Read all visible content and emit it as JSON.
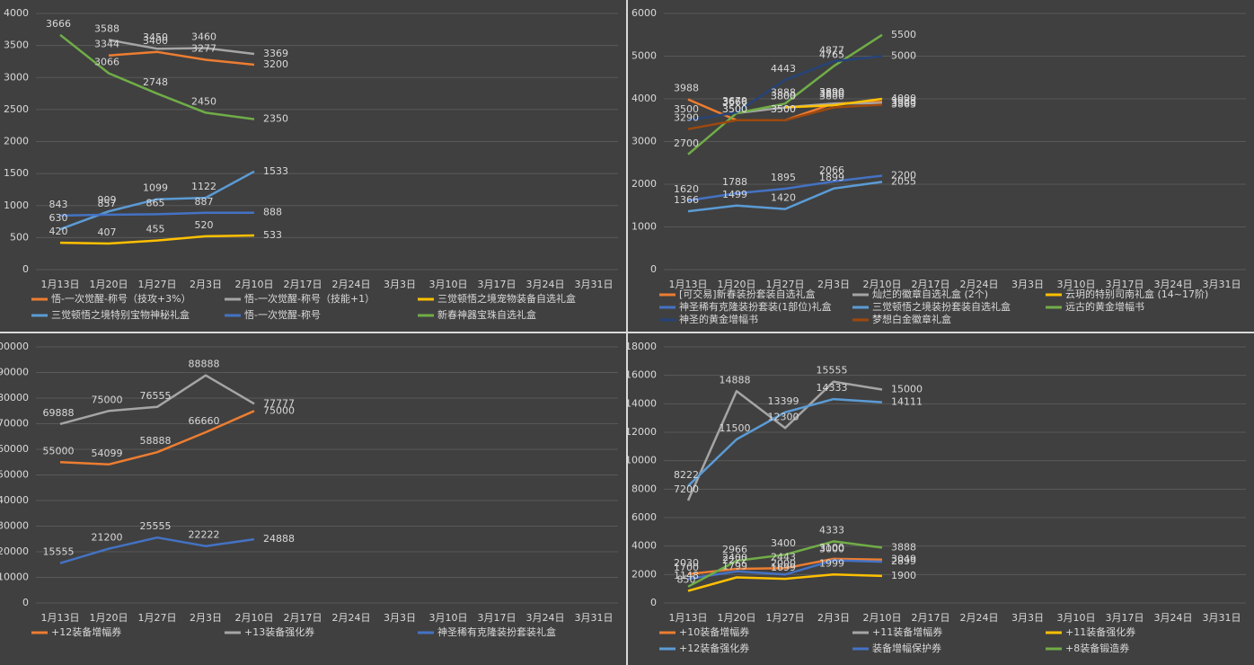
{
  "chart_data": [
    {
      "type": "line",
      "categories": [
        "1月13日",
        "1月20日",
        "1月27日",
        "2月3日",
        "2月10日",
        "2月17日",
        "2月24日",
        "3月3日",
        "3月10日",
        "3月17日",
        "3月24日",
        "3月31日"
      ],
      "ylim": [
        0,
        4000
      ],
      "yticks": [
        0,
        500,
        1000,
        1500,
        2000,
        2500,
        3000,
        3500,
        4000
      ],
      "grid": true,
      "series": [
        {
          "name": "悟-一次觉醒-称号（技攻+3%）",
          "color": "#ed7d31",
          "values": [
            null,
            3344,
            3400,
            3277,
            3200,
            null,
            null,
            null,
            null,
            null,
            null,
            null
          ]
        },
        {
          "name": "悟-一次觉醒-称号（技能+1）",
          "color": "#a5a5a5",
          "values": [
            null,
            3588,
            3450,
            3460,
            3369,
            null,
            null,
            null,
            null,
            null,
            null,
            null
          ]
        },
        {
          "name": "三觉顿悟之境宠物装备自选礼盒",
          "color": "#ffc000",
          "values": [
            420,
            407,
            455,
            520,
            533,
            null,
            null,
            null,
            null,
            null,
            null,
            null
          ]
        },
        {
          "name": "三觉顿悟之境特别宝物神秘礼盒",
          "color": "#5b9bd5",
          "values": [
            630,
            909,
            1099,
            1122,
            1533,
            null,
            null,
            null,
            null,
            null,
            null,
            null
          ]
        },
        {
          "name": "悟-一次觉醒-称号",
          "color": "#4472c4",
          "values": [
            843,
            857,
            865,
            887,
            888,
            null,
            null,
            null,
            null,
            null,
            null,
            null
          ]
        },
        {
          "name": "新春神器宝珠自选礼盒",
          "color": "#70ad47",
          "values": [
            3666,
            3066,
            2748,
            2450,
            2350,
            null,
            null,
            null,
            null,
            null,
            null,
            null
          ]
        }
      ]
    },
    {
      "type": "line",
      "categories": [
        "1月13日",
        "1月20日",
        "1月27日",
        "2月3日",
        "2月10日",
        "2月17日",
        "2月24日",
        "3月3日",
        "3月10日",
        "3月17日",
        "3月24日",
        "3月31日"
      ],
      "ylim": [
        0,
        6000
      ],
      "yticks": [
        0,
        1000,
        2000,
        3000,
        4000,
        5000,
        6000
      ],
      "grid": true,
      "series": [
        {
          "name": "[可交易]新春装扮套装自选礼盒",
          "color": "#ed7d31",
          "values": [
            3988,
            3500,
            3500,
            3890,
            3933,
            null,
            null,
            null,
            null,
            null,
            null,
            null
          ]
        },
        {
          "name": "灿烂的徽章自选礼盒 (2个)",
          "color": "#a5a5a5",
          "values": [
            null,
            3666,
            3800,
            3890,
            3900,
            null,
            null,
            null,
            null,
            null,
            null,
            null
          ]
        },
        {
          "name": "云玥的特别司南礼盒 (14~17阶)",
          "color": "#ffc000",
          "values": [
            null,
            null,
            3800,
            3850,
            4000,
            null,
            null,
            null,
            null,
            null,
            null,
            null
          ]
        },
        {
          "name": "神圣稀有克隆装扮套装(1部位)礼盒",
          "color": "#4472c4",
          "values": [
            1620,
            1788,
            1895,
            2066,
            2200,
            null,
            null,
            null,
            null,
            null,
            null,
            null
          ]
        },
        {
          "name": "三觉顿悟之境装扮套装自选礼盒",
          "color": "#5b9bd5",
          "values": [
            1366,
            1499,
            1420,
            1899,
            2055,
            null,
            null,
            null,
            null,
            null,
            null,
            null
          ]
        },
        {
          "name": "远古的黄金增幅书",
          "color": "#70ad47",
          "values": [
            2700,
            3666,
            3888,
            4765,
            5500,
            null,
            null,
            null,
            null,
            null,
            null,
            null
          ]
        },
        {
          "name": "神圣的黄金增幅书",
          "color": "#264478",
          "values": [
            3500,
            3679,
            4443,
            4877,
            5000,
            null,
            null,
            null,
            null,
            null,
            null,
            null
          ]
        },
        {
          "name": "梦想白金徽章礼盒",
          "color": "#9e480e",
          "values": [
            3290,
            3500,
            3500,
            3800,
            3863,
            null,
            null,
            null,
            null,
            null,
            null,
            null
          ]
        }
      ]
    },
    {
      "type": "line",
      "categories": [
        "1月13日",
        "1月20日",
        "1月27日",
        "2月3日",
        "2月10日",
        "2月17日",
        "2月24日",
        "3月3日",
        "3月10日",
        "3月17日",
        "3月24日",
        "3月31日"
      ],
      "ylim": [
        0,
        100000
      ],
      "yticks": [
        0,
        10000,
        20000,
        30000,
        40000,
        50000,
        60000,
        70000,
        80000,
        90000,
        100000
      ],
      "grid": true,
      "series": [
        {
          "name": "+12装备增幅券",
          "color": "#ed7d31",
          "values": [
            55000,
            54099,
            58888,
            66660,
            75000,
            null,
            null,
            null,
            null,
            null,
            null,
            null
          ]
        },
        {
          "name": "+13装备强化券",
          "color": "#a5a5a5",
          "values": [
            69888,
            75000,
            76555,
            88888,
            77777,
            null,
            null,
            null,
            null,
            null,
            null,
            null
          ]
        },
        {
          "name": "神圣稀有克隆装扮套装礼盒",
          "color": "#4472c4",
          "values": [
            15555,
            21200,
            25555,
            22222,
            24888,
            null,
            null,
            null,
            null,
            null,
            null,
            null
          ]
        }
      ]
    },
    {
      "type": "line",
      "categories": [
        "1月13日",
        "1月20日",
        "1月27日",
        "2月3日",
        "2月10日",
        "2月17日",
        "2月24日",
        "3月3日",
        "3月10日",
        "3月17日",
        "3月24日",
        "3月31日"
      ],
      "ylim": [
        0,
        18000
      ],
      "yticks": [
        0,
        2000,
        4000,
        6000,
        8000,
        10000,
        12000,
        14000,
        16000,
        18000
      ],
      "grid": true,
      "series": [
        {
          "name": "+10装备增幅券",
          "color": "#ed7d31",
          "values": [
            2030,
            2400,
            2443,
            3100,
            3049,
            null,
            null,
            null,
            null,
            null,
            null,
            null
          ]
        },
        {
          "name": "+11装备增幅券",
          "color": "#a5a5a5",
          "values": [
            7200,
            14888,
            12300,
            15555,
            15000,
            null,
            null,
            null,
            null,
            null,
            null,
            null
          ]
        },
        {
          "name": "+11装备强化券",
          "color": "#ffc000",
          "values": [
            850,
            1799,
            1699,
            1999,
            1900,
            null,
            null,
            null,
            null,
            null,
            null,
            null
          ]
        },
        {
          "name": "+12装备强化券",
          "color": "#5b9bd5",
          "values": [
            8222,
            11500,
            13399,
            14333,
            14111,
            null,
            null,
            null,
            null,
            null,
            null,
            null
          ]
        },
        {
          "name": "装备增幅保护券",
          "color": "#4472c4",
          "values": [
            1700,
            2222,
            2000,
            3000,
            2899,
            null,
            null,
            null,
            null,
            null,
            null,
            null
          ]
        },
        {
          "name": "+8装备锻造券",
          "color": "#70ad47",
          "values": [
            1148,
            2966,
            3400,
            4333,
            3888,
            null,
            null,
            null,
            null,
            null,
            null,
            null
          ]
        }
      ]
    }
  ]
}
